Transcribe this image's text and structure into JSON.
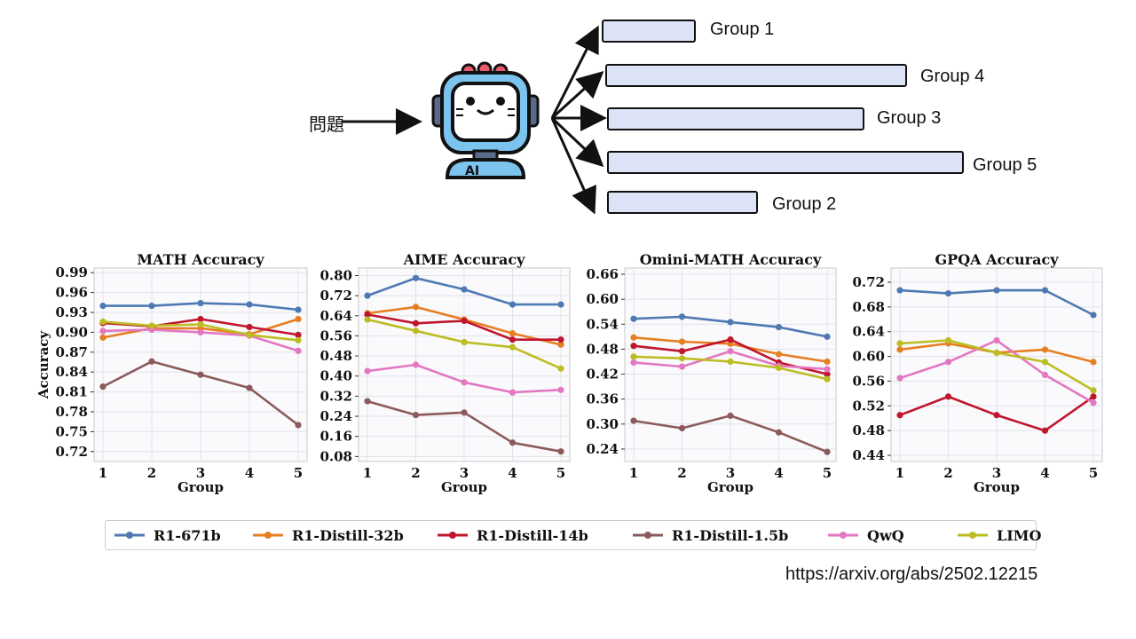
{
  "diagram": {
    "question_label": "問題",
    "robot_badge": "AI",
    "groups": [
      {
        "label": "Group 1"
      },
      {
        "label": "Group 4"
      },
      {
        "label": "Group 3"
      },
      {
        "label": "Group 5"
      },
      {
        "label": "Group 2"
      }
    ]
  },
  "legend": [
    {
      "name": "R1-671b",
      "color": "#4e79b3"
    },
    {
      "name": "R1-Distill-32b",
      "color": "#e67e22"
    },
    {
      "name": "R1-Distill-14b",
      "color": "#c0162d"
    },
    {
      "name": "R1-Distill-1.5b",
      "color": "#8c5a5a"
    },
    {
      "name": "QwQ",
      "color": "#e377c2"
    },
    {
      "name": "LIMO",
      "color": "#bcbd22"
    }
  ],
  "source_url": "https://arxiv.org/abs/2502.12215",
  "chart_data": [
    {
      "type": "line",
      "title": "MATH Accuracy",
      "xlabel": "Group",
      "ylabel": "Accuracy",
      "x": [
        1,
        2,
        3,
        4,
        5
      ],
      "yticks": [
        "0.72",
        "0.75",
        "0.78",
        "0.81",
        "0.84",
        "0.87",
        "0.90",
        "0.93",
        "0.96",
        "0.99"
      ],
      "ylim": [
        0.705,
        0.997
      ],
      "grid": true,
      "series": [
        {
          "name": "R1-671b",
          "values": [
            0.94,
            0.94,
            0.944,
            0.942,
            0.934
          ]
        },
        {
          "name": "R1-Distill-32b",
          "values": [
            0.892,
            0.906,
            0.906,
            0.897,
            0.92
          ]
        },
        {
          "name": "R1-Distill-14b",
          "values": [
            0.914,
            0.909,
            0.92,
            0.908,
            0.896
          ]
        },
        {
          "name": "R1-Distill-1.5b",
          "values": [
            0.818,
            0.856,
            0.836,
            0.816,
            0.76
          ]
        },
        {
          "name": "QwQ",
          "values": [
            0.902,
            0.904,
            0.9,
            0.895,
            0.872
          ]
        },
        {
          "name": "LIMO",
          "values": [
            0.916,
            0.91,
            0.912,
            0.896,
            0.888
          ]
        }
      ]
    },
    {
      "type": "line",
      "title": "AIME Accuracy",
      "xlabel": "Group",
      "ylabel": "",
      "x": [
        1,
        2,
        3,
        4,
        5
      ],
      "yticks": [
        "0.08",
        "0.16",
        "0.24",
        "0.32",
        "0.40",
        "0.48",
        "0.56",
        "0.64",
        "0.72",
        "0.80"
      ],
      "ylim": [
        0.06,
        0.83
      ],
      "grid": true,
      "series": [
        {
          "name": "R1-671b",
          "values": [
            0.72,
            0.79,
            0.745,
            0.685,
            0.685
          ]
        },
        {
          "name": "R1-Distill-32b",
          "values": [
            0.65,
            0.675,
            0.625,
            0.57,
            0.525
          ]
        },
        {
          "name": "R1-Distill-14b",
          "values": [
            0.645,
            0.61,
            0.62,
            0.545,
            0.545
          ]
        },
        {
          "name": "R1-Distill-1.5b",
          "values": [
            0.3,
            0.245,
            0.255,
            0.135,
            0.1
          ]
        },
        {
          "name": "QwQ",
          "values": [
            0.42,
            0.445,
            0.375,
            0.335,
            0.345
          ]
        },
        {
          "name": "LIMO",
          "values": [
            0.625,
            0.58,
            0.535,
            0.515,
            0.43
          ]
        }
      ]
    },
    {
      "type": "line",
      "title": "Omini-MATH Accuracy",
      "xlabel": "Group",
      "ylabel": "",
      "x": [
        1,
        2,
        3,
        4,
        5
      ],
      "yticks": [
        "0.24",
        "0.30",
        "0.36",
        "0.42",
        "0.48",
        "0.54",
        "0.60",
        "0.66"
      ],
      "ylim": [
        0.21,
        0.675
      ],
      "grid": true,
      "series": [
        {
          "name": "R1-671b",
          "values": [
            0.553,
            0.558,
            0.545,
            0.533,
            0.51
          ]
        },
        {
          "name": "R1-Distill-32b",
          "values": [
            0.508,
            0.498,
            0.493,
            0.468,
            0.45
          ]
        },
        {
          "name": "R1-Distill-14b",
          "values": [
            0.488,
            0.475,
            0.503,
            0.448,
            0.42
          ]
        },
        {
          "name": "R1-Distill-1.5b",
          "values": [
            0.308,
            0.29,
            0.32,
            0.28,
            0.233
          ]
        },
        {
          "name": "QwQ",
          "values": [
            0.448,
            0.438,
            0.475,
            0.44,
            0.432
          ]
        },
        {
          "name": "LIMO",
          "values": [
            0.462,
            0.458,
            0.45,
            0.435,
            0.408
          ]
        }
      ]
    },
    {
      "type": "line",
      "title": "GPQA Accuracy",
      "xlabel": "Group",
      "ylabel": "",
      "x": [
        1,
        2,
        3,
        4,
        5
      ],
      "yticks": [
        "0.44",
        "0.48",
        "0.52",
        "0.56",
        "0.60",
        "0.64",
        "0.68",
        "0.72"
      ],
      "ylim": [
        0.43,
        0.743
      ],
      "grid": true,
      "series": [
        {
          "name": "R1-671b",
          "values": [
            0.707,
            0.702,
            0.707,
            0.707,
            0.667
          ]
        },
        {
          "name": "R1-Distill-32b",
          "values": [
            0.611,
            0.621,
            0.606,
            0.611,
            0.591
          ]
        },
        {
          "name": "R1-Distill-14b",
          "values": [
            0.505,
            0.535,
            0.505,
            0.48,
            0.535
          ]
        },
        {
          "name": "R1-Distill-1.5b",
          "values": [
            null,
            null,
            null,
            null,
            null
          ]
        },
        {
          "name": "QwQ",
          "values": [
            0.565,
            0.591,
            0.626,
            0.57,
            0.525
          ]
        },
        {
          "name": "LIMO",
          "values": [
            0.621,
            0.626,
            0.606,
            0.591,
            0.545
          ]
        }
      ]
    }
  ]
}
